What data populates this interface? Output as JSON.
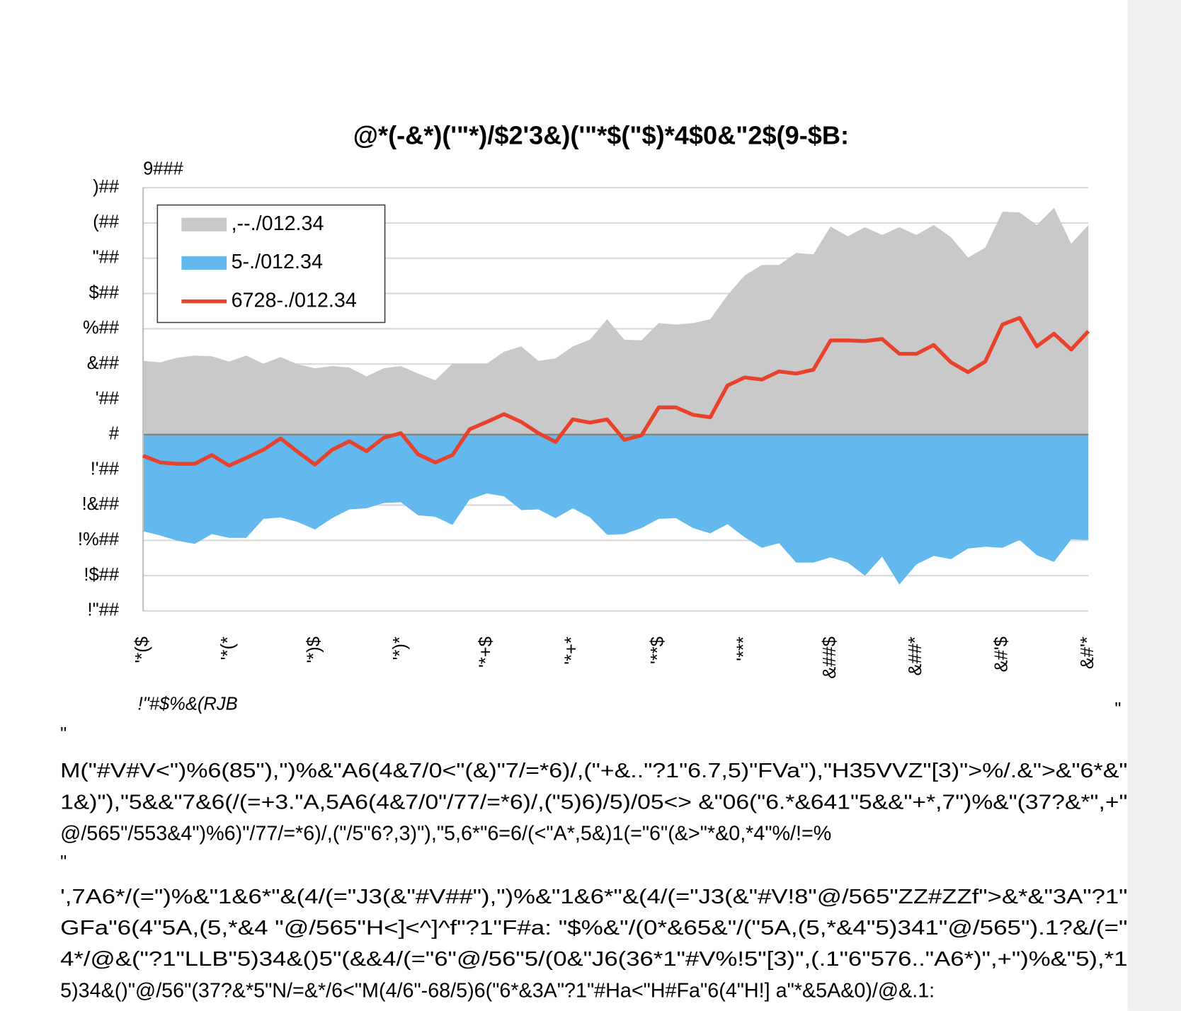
{
  "chart_data": {
    "type": "area",
    "title": "@*(-&*)('\"*)/$2'3&)('\"*$(\"$)*4$0&\"2$(9-$B:",
    "units_label": "9###",
    "categories": [
      "'*($",
      null,
      null,
      null,
      null,
      "'*(*",
      null,
      null,
      null,
      null,
      "'*)$",
      null,
      null,
      null,
      null,
      "'*)*",
      null,
      null,
      null,
      null,
      "'*+$",
      null,
      null,
      null,
      null,
      "'*+*",
      null,
      null,
      null,
      null,
      "'**$",
      null,
      null,
      null,
      null,
      "'***",
      null,
      null,
      null,
      null,
      "&##$",
      null,
      null,
      null,
      null,
      "&##*",
      null,
      null,
      null,
      null,
      "&#'$",
      null,
      null,
      null,
      null,
      "&#'*"
    ],
    "series": [
      {
        "name": ",--./012.34",
        "color": "#c9c9c9",
        "kind": "area",
        "values": [
          209,
          205,
          218,
          224,
          222,
          207,
          224,
          201,
          220,
          199,
          188,
          194,
          190,
          165,
          188,
          194,
          173,
          154,
          201,
          201,
          201,
          235,
          250,
          209,
          216,
          250,
          269,
          327,
          269,
          267,
          316,
          312,
          316,
          327,
          395,
          451,
          481,
          481,
          515,
          511,
          590,
          562,
          588,
          566,
          588,
          566,
          594,
          560,
          502,
          530,
          632,
          630,
          594,
          643,
          541,
          594
        ]
      },
      {
        "name": "5-./012.34",
        "color": "#63b8ed",
        "kind": "area",
        "values": [
          -274,
          -286,
          -301,
          -310,
          -282,
          -293,
          -293,
          -239,
          -235,
          -248,
          -269,
          -237,
          -212,
          -209,
          -194,
          -192,
          -229,
          -233,
          -256,
          -184,
          -167,
          -175,
          -214,
          -212,
          -237,
          -209,
          -235,
          -284,
          -282,
          -265,
          -239,
          -237,
          -265,
          -280,
          -254,
          -291,
          -321,
          -308,
          -363,
          -363,
          -348,
          -363,
          -400,
          -346,
          -425,
          -368,
          -344,
          -353,
          -323,
          -318,
          -321,
          -299,
          -342,
          -361,
          -297,
          -299
        ]
      },
      {
        "name": "6728-./012.34",
        "color": "#e8412c",
        "kind": "line",
        "values": [
          -60,
          -79,
          -83,
          -83,
          -58,
          -88,
          -66,
          -43,
          -11,
          -49,
          -85,
          -43,
          -19,
          -47,
          -9,
          4,
          -56,
          -79,
          -58,
          15,
          36,
          58,
          36,
          4,
          -21,
          43,
          34,
          43,
          -15,
          -2,
          77,
          77,
          56,
          49,
          139,
          162,
          156,
          179,
          173,
          184,
          267,
          267,
          265,
          271,
          229,
          229,
          254,
          205,
          177,
          207,
          312,
          331,
          250,
          286,
          241,
          293
        ]
      }
    ],
    "ylim": [
      -500,
      700
    ],
    "yticks": [
      {
        "value": 700,
        "label": ")##"
      },
      {
        "value": 600,
        "label": "(##"
      },
      {
        "value": 500,
        "label": "\"##"
      },
      {
        "value": 400,
        "label": "$##"
      },
      {
        "value": 300,
        "label": "%##"
      },
      {
        "value": 200,
        "label": "&##"
      },
      {
        "value": 100,
        "label": "'##"
      },
      {
        "value": 0,
        "label": "#"
      },
      {
        "value": -100,
        "label": "!'##"
      },
      {
        "value": -200,
        "label": "!&##"
      },
      {
        "value": -300,
        "label": "!%##"
      },
      {
        "value": -400,
        "label": "!$##"
      },
      {
        "value": -500,
        "label": "!\"##"
      }
    ],
    "grid": true,
    "legend": "upper left"
  },
  "document": {
    "source": "!\"#$%&(RJB",
    "marks": [
      "\"",
      "\"",
      "\""
    ],
    "paragraphs": [
      [
        "M(\"#V#V<\")%6(85\"),\")%&\"A6(4&7/0<\"(&)\"7/=*6)/,(\"+&..\"?1\"6.7,5)\"FVa\"),\"H35VVZ\"[3)\">%/.&\">&\"6*&\"",
        "1&)\"),\"5&&\"7&6(/(=+3.\"A,5A6(4&7/0\"/77/=*6)/,(\"5)6)/5)/05<> &\"06(\"6.*&641\"5&&\"+*,7\")%&\"(37?&*\",+\"",
        "@/565\"/553&4\")%6)\"/77/=*6)/,(\"/5\"6?,3)\"),\"5,6*\"6=6/(<\"A*,5&)1(=\"6\"(&>\"*&0,*4\"%/!=%"
      ],
      [
        "',7A6*/(=\")%&\"1&6*\"&(4/(=\"J3(&\"#V##\"),\")%&\"1&6*\"&(4/(=\"J3(&\"#V!8\"@/565\"ZZ#ZZf\">&*&\"3A\"?1\"",
        "GFa\"6(4\"5A,(5,*&4 \"@/565\"H<]<^]^f\"?1\"F#a: \"$%&\"/(0*&65&\"/(\"5A,(5,*&4\"5)341\"@/565\").1?&/(=\"",
        "4*/@&(\"?1\"LLB\"5)34&()5\"(&&4/(=\"6\"@/56\"5/(0&\"J6(36*1\"#V%!5\"[3)\",(.1\"6\"576..\"A6*)\",+\")%&\"5),*1",
        "5)34&()\"@/56\"(37?&*5\"N/=&*/6<\"M(4/6\"-68/5)6(\"6*&3A\"?1\"#Ha<\"H#Fa\"6(4\"H!] a\"*&5A&0)/@&.1:"
      ]
    ]
  }
}
